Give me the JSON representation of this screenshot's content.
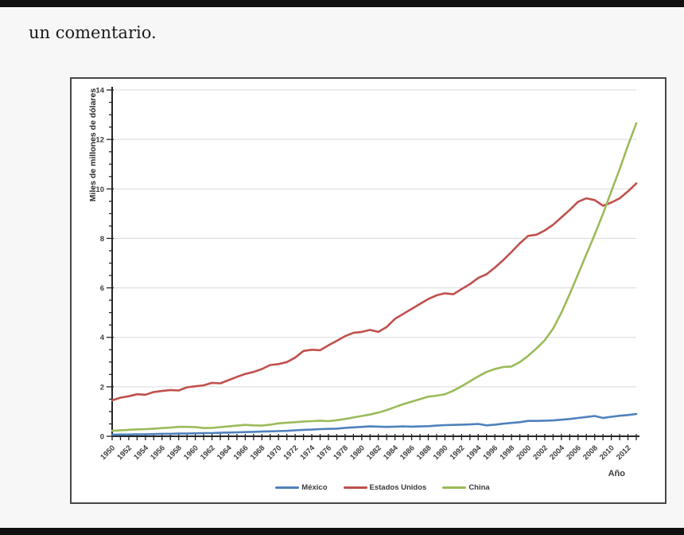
{
  "caption": {
    "text": "un comentario."
  },
  "chart": {
    "y_axis_title": "Miles de millones de dólares",
    "x_axis_title": "Año"
  },
  "chart_data": {
    "type": "line",
    "title": "",
    "xlabel": "Año",
    "ylabel": "Miles de millones de dólares",
    "ylim": [
      0,
      14
    ],
    "ytick_step": 2,
    "y_minor_tick_step": 0.5,
    "x_tick_label_step": 2,
    "x_minor_tick_step": 1,
    "grid": "horizontal",
    "legend_position": "bottom",
    "x": [
      1950,
      1951,
      1952,
      1953,
      1954,
      1955,
      1956,
      1957,
      1958,
      1959,
      1960,
      1961,
      1962,
      1963,
      1964,
      1965,
      1966,
      1967,
      1968,
      1969,
      1970,
      1971,
      1972,
      1973,
      1974,
      1975,
      1976,
      1977,
      1978,
      1979,
      1980,
      1981,
      1982,
      1983,
      1984,
      1985,
      1986,
      1987,
      1988,
      1989,
      1990,
      1991,
      1992,
      1993,
      1994,
      1995,
      1996,
      1997,
      1998,
      1999,
      2000,
      2001,
      2002,
      2003,
      2004,
      2005,
      2006,
      2007,
      2008,
      2009,
      2010,
      2011,
      2012,
      2013
    ],
    "series": [
      {
        "name": "México",
        "color": "#4f81bd",
        "values": [
          0.06,
          0.07,
          0.07,
          0.08,
          0.08,
          0.09,
          0.1,
          0.1,
          0.11,
          0.11,
          0.12,
          0.13,
          0.13,
          0.14,
          0.15,
          0.16,
          0.17,
          0.18,
          0.19,
          0.2,
          0.21,
          0.22,
          0.24,
          0.26,
          0.27,
          0.29,
          0.3,
          0.31,
          0.34,
          0.36,
          0.38,
          0.4,
          0.39,
          0.38,
          0.39,
          0.4,
          0.39,
          0.4,
          0.41,
          0.43,
          0.45,
          0.46,
          0.47,
          0.48,
          0.5,
          0.44,
          0.47,
          0.51,
          0.54,
          0.57,
          0.62,
          0.62,
          0.63,
          0.64,
          0.67,
          0.7,
          0.74,
          0.78,
          0.82,
          0.74,
          0.79,
          0.83,
          0.86,
          0.9
        ]
      },
      {
        "name": "Estados Unidos",
        "color": "#c0504d",
        "values": [
          1.45,
          1.56,
          1.62,
          1.7,
          1.68,
          1.79,
          1.83,
          1.87,
          1.85,
          1.98,
          2.02,
          2.06,
          2.16,
          2.14,
          2.27,
          2.4,
          2.52,
          2.6,
          2.72,
          2.88,
          2.92,
          3.0,
          3.18,
          3.45,
          3.5,
          3.48,
          3.68,
          3.86,
          4.05,
          4.18,
          4.22,
          4.3,
          4.22,
          4.42,
          4.75,
          4.95,
          5.15,
          5.35,
          5.55,
          5.7,
          5.78,
          5.74,
          5.95,
          6.15,
          6.4,
          6.55,
          6.82,
          7.12,
          7.45,
          7.8,
          8.1,
          8.15,
          8.32,
          8.55,
          8.85,
          9.15,
          9.48,
          9.62,
          9.55,
          9.32,
          9.45,
          9.62,
          9.9,
          10.22
        ]
      },
      {
        "name": "China",
        "color": "#9bbb59",
        "values": [
          0.22,
          0.24,
          0.26,
          0.28,
          0.29,
          0.31,
          0.33,
          0.35,
          0.38,
          0.38,
          0.37,
          0.33,
          0.34,
          0.37,
          0.4,
          0.43,
          0.46,
          0.44,
          0.43,
          0.47,
          0.52,
          0.55,
          0.57,
          0.6,
          0.61,
          0.63,
          0.61,
          0.65,
          0.7,
          0.76,
          0.82,
          0.88,
          0.96,
          1.06,
          1.18,
          1.3,
          1.4,
          1.5,
          1.6,
          1.64,
          1.7,
          1.84,
          2.02,
          2.22,
          2.42,
          2.6,
          2.72,
          2.8,
          2.82,
          3.0,
          3.25,
          3.55,
          3.88,
          4.35,
          5.0,
          5.75,
          6.55,
          7.35,
          8.15,
          9.0,
          9.9,
          10.8,
          11.75,
          12.65
        ]
      }
    ]
  }
}
